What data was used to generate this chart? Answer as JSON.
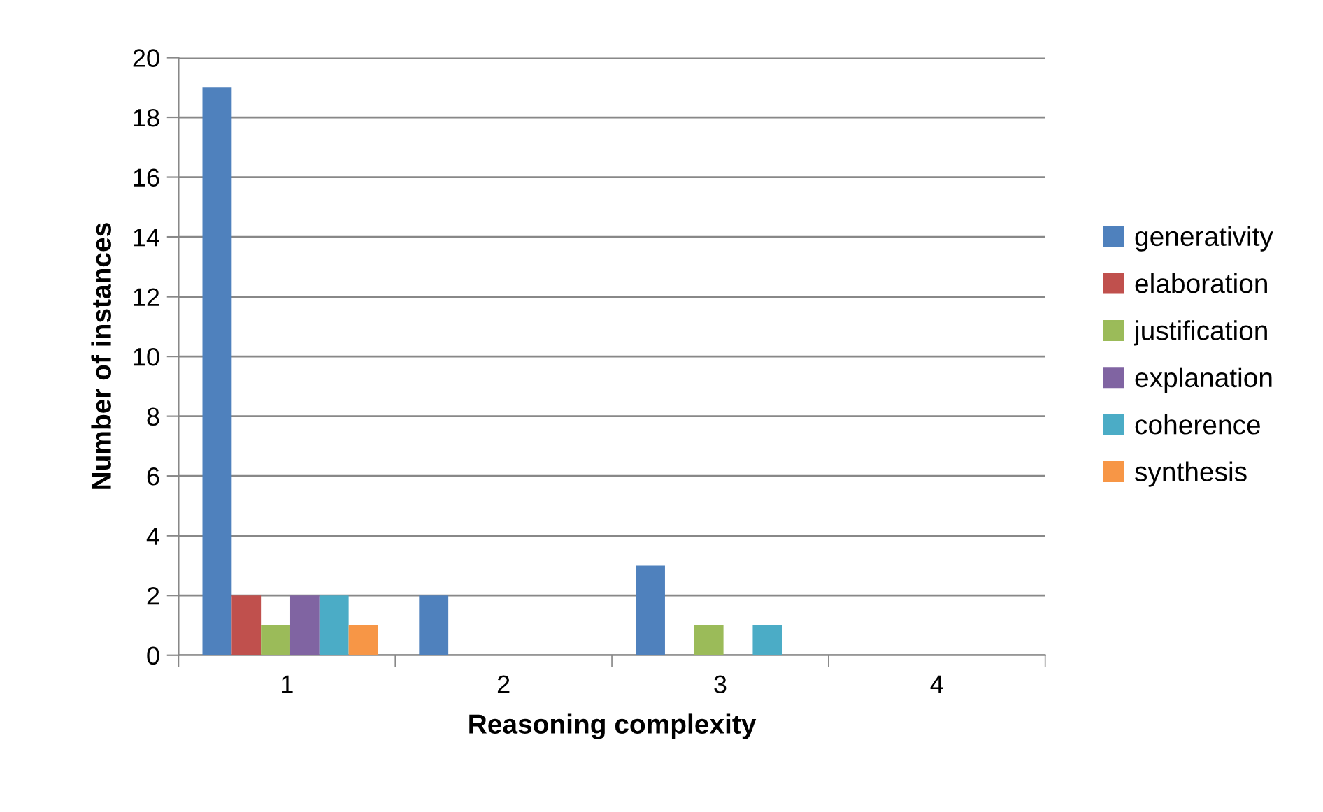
{
  "chart_data": {
    "type": "bar",
    "xlabel": "Reasoning complexity",
    "ylabel": "Number of instances",
    "categories": [
      "1",
      "2",
      "3",
      "4"
    ],
    "series": [
      {
        "name": "generativity",
        "color": "#4f81bd",
        "values": [
          19,
          2,
          3,
          0
        ]
      },
      {
        "name": "elaboration",
        "color": "#c0504d",
        "values": [
          2,
          0,
          0,
          0
        ]
      },
      {
        "name": "justification",
        "color": "#9bbb59",
        "values": [
          1,
          0,
          1,
          0
        ]
      },
      {
        "name": "explanation",
        "color": "#8064a2",
        "values": [
          2,
          0,
          0,
          0
        ]
      },
      {
        "name": "coherence",
        "color": "#4bacc6",
        "values": [
          2,
          0,
          1,
          0
        ]
      },
      {
        "name": "synthesis",
        "color": "#f79646",
        "values": [
          1,
          0,
          0,
          0
        ]
      }
    ],
    "ylim": [
      0,
      20
    ],
    "yticks": [
      0,
      2,
      4,
      6,
      8,
      10,
      12,
      14,
      16,
      18,
      20
    ],
    "grid": "y",
    "legend": "right"
  }
}
